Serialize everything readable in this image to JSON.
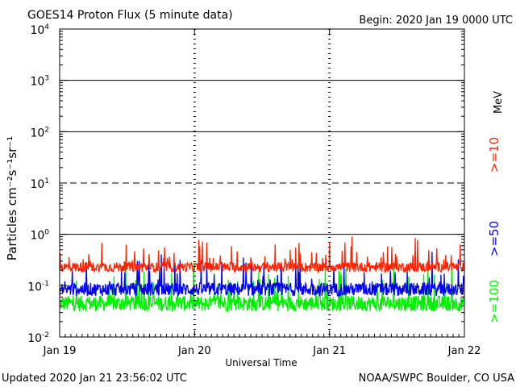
{
  "chart_data": {
    "type": "line",
    "title": "GOES14 Proton Flux (5 minute data)",
    "begin_label": "Begin: 2020 Jan 19 0000 UTC",
    "ylabel": "Particles cm⁻²s⁻¹sr⁻¹",
    "xlabel": "Universal Time",
    "x_ticks": [
      "Jan 19",
      "Jan 20",
      "Jan 21",
      "Jan 22"
    ],
    "y_scale": "log",
    "ylim": [
      0.01,
      10000
    ],
    "y_ticks": [
      {
        "mantissa": "10",
        "exp": "-2"
      },
      {
        "mantissa": "10",
        "exp": "-1"
      },
      {
        "mantissa": "10",
        "exp": "0"
      },
      {
        "mantissa": "10",
        "exp": "1"
      },
      {
        "mantissa": "10",
        "exp": "2"
      },
      {
        "mantissa": "10",
        "exp": "3"
      },
      {
        "mantissa": "10",
        "exp": "4"
      }
    ],
    "unit_label": "MeV",
    "reference_lines": [
      {
        "value": 1,
        "style": "solid"
      },
      {
        "value": 10,
        "style": "dashed"
      },
      {
        "value": 100,
        "style": "solid"
      },
      {
        "value": 1000,
        "style": "solid"
      }
    ],
    "x_range_days": [
      0,
      3
    ],
    "series": [
      {
        "name": ">=10",
        "color": "#ff2200",
        "base": 0.23,
        "noise": 0.22,
        "spike_prob": 0.07,
        "spike_max": 0.6
      },
      {
        "name": ">=50",
        "color": "#0000ee",
        "base": 0.085,
        "noise": 0.3,
        "spike_prob": 0.08,
        "spike_max": 0.7
      },
      {
        "name": ">=100",
        "color": "#00ee00",
        "base": 0.045,
        "noise": 0.35,
        "spike_prob": 0.08,
        "spike_max": 0.8
      }
    ]
  },
  "footer": {
    "updated": "Updated 2020 Jan 21 23:56:02 UTC",
    "credit": "NOAA/SWPC Boulder, CO USA"
  }
}
